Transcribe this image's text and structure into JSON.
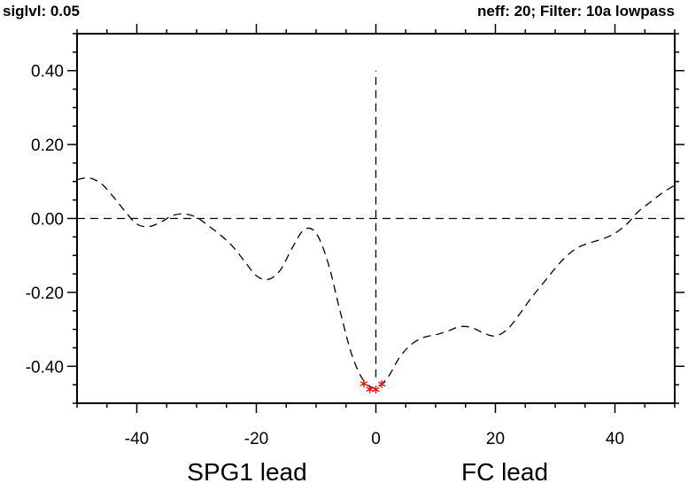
{
  "header": {
    "left": "siglvl: 0.05",
    "right": "neff: 20; Filter: 10a lowpass"
  },
  "chart_data": {
    "type": "line",
    "xlim": [
      -50,
      50
    ],
    "ylim": [
      -0.5,
      0.5
    ],
    "xticks": [
      -40,
      -20,
      0,
      20,
      40
    ],
    "xtick_labels": [
      "-40",
      "-20",
      "0",
      "20",
      "40"
    ],
    "yticks": [
      -0.4,
      -0.2,
      0.0,
      0.2,
      0.4
    ],
    "ytick_labels": [
      "-0.40",
      "-0.20",
      "0.00",
      "0.20",
      "0.40"
    ],
    "x_label_left": "SPG1 lead",
    "x_label_right": "FC lead",
    "grid": false,
    "zero_line": true,
    "lag_zero_line": [
      -0.43,
      0.4
    ],
    "series": [
      {
        "style": "dashed",
        "color": "#000000",
        "x": [
          -50,
          -48,
          -46,
          -44,
          -42,
          -40,
          -38,
          -36,
          -34,
          -32,
          -30,
          -28,
          -26,
          -24,
          -22,
          -20,
          -18,
          -16,
          -14,
          -12,
          -10,
          -8,
          -6,
          -4,
          -2,
          0,
          2,
          4,
          6,
          8,
          10,
          12,
          14,
          16,
          18,
          20,
          22,
          24,
          26,
          28,
          30,
          32,
          34,
          36,
          38,
          40,
          42,
          44,
          46,
          48,
          50
        ],
        "y": [
          0.105,
          0.11,
          0.095,
          0.06,
          0.02,
          -0.015,
          -0.022,
          -0.01,
          0.008,
          0.012,
          0.003,
          -0.02,
          -0.045,
          -0.075,
          -0.115,
          -0.155,
          -0.165,
          -0.14,
          -0.08,
          -0.03,
          -0.04,
          -0.12,
          -0.25,
          -0.37,
          -0.44,
          -0.458,
          -0.43,
          -0.375,
          -0.34,
          -0.322,
          -0.315,
          -0.305,
          -0.293,
          -0.295,
          -0.31,
          -0.318,
          -0.3,
          -0.26,
          -0.215,
          -0.175,
          -0.135,
          -0.1,
          -0.077,
          -0.065,
          -0.055,
          -0.04,
          -0.015,
          0.02,
          0.045,
          0.07,
          0.09
        ]
      }
    ],
    "significant_points": {
      "color": "#ff0000",
      "marker": "asterisk",
      "x": [
        -2,
        -1,
        0,
        1
      ],
      "y": [
        -0.447,
        -0.462,
        -0.463,
        -0.448
      ]
    }
  }
}
